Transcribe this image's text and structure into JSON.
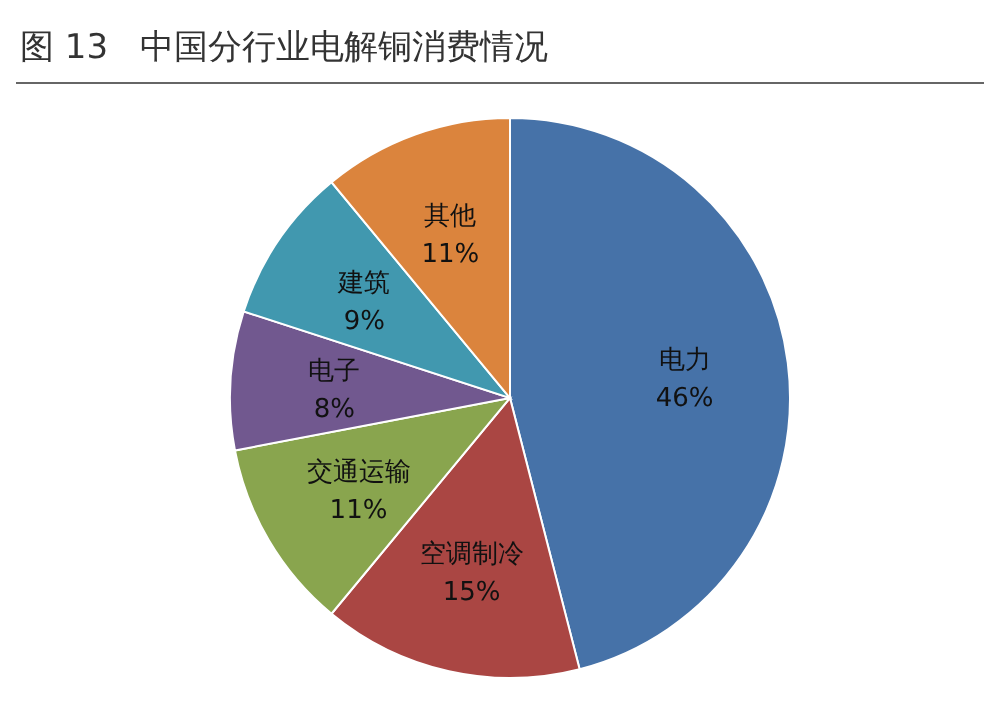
{
  "chart_data": {
    "type": "pie",
    "title": "图 13   中国分行业电解铜消费情况",
    "categories": [
      "电力",
      "空调制冷",
      "交通运输",
      "电子",
      "建筑",
      "其他"
    ],
    "values": [
      46,
      15,
      11,
      8,
      9,
      11
    ],
    "colors": [
      "#4672a8",
      "#aa4643",
      "#89a54e",
      "#71588f",
      "#4198af",
      "#db843d"
    ],
    "value_labels": [
      "46%",
      "15%",
      "11%",
      "8%",
      "9%",
      "11%"
    ],
    "legend": false
  }
}
